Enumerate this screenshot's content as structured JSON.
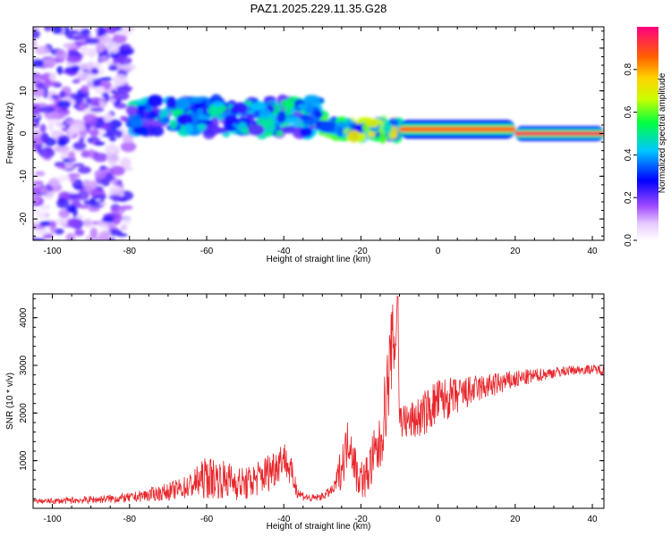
{
  "title": "PAZ1.2025.229.11.35.G28",
  "chart_data": [
    {
      "type": "heatmap",
      "xlabel": "Height of straight line (km)",
      "ylabel": "Frequency (Hz)",
      "xlim": [
        -105,
        43
      ],
      "ylim": [
        -25,
        25
      ],
      "x_ticks": [
        -100,
        -80,
        -60,
        -40,
        -20,
        0,
        20,
        40
      ],
      "x_tick_labels": [
        "-100",
        "-80",
        "-60",
        "-40",
        "-20",
        "0",
        "20",
        "40"
      ],
      "y_ticks": [
        -20,
        -10,
        0,
        10,
        20
      ],
      "y_tick_labels": [
        "-20",
        "-10",
        "0",
        "10",
        "20"
      ],
      "colorbar": {
        "label": "Normalized spectral amplitude",
        "range": [
          0,
          1
        ],
        "ticks": [
          0,
          0.2,
          0.4,
          0.6,
          0.8
        ],
        "tick_labels": [
          "0.0",
          "0.2",
          "0.4",
          "0.6",
          "0.8"
        ],
        "colormap": "rainbow"
      },
      "features": [
        {
          "region": "noise",
          "x_range": [
            -105,
            -80
          ],
          "freq_range": [
            -25,
            25
          ],
          "amplitude": 0.15
        },
        {
          "region": "tracking",
          "x_range": [
            -80,
            -30
          ],
          "freq_center": 4,
          "freq_width": 4,
          "amplitude": 0.35
        },
        {
          "region": "tracking",
          "x_range": [
            -30,
            -10
          ],
          "freq_center": 1,
          "freq_width": 2,
          "amplitude": 0.5
        },
        {
          "region": "tone",
          "x_range": [
            -10,
            20
          ],
          "freq_center": 1,
          "freq_width": 1,
          "amplitude": 0.85
        },
        {
          "region": "tone",
          "x_range": [
            20,
            43
          ],
          "freq_center": 0,
          "freq_width": 0.8,
          "amplitude": 0.95
        }
      ],
      "grid": false
    },
    {
      "type": "line",
      "xlabel": "Height of straight line (km)",
      "ylabel": "SNR (10 * v/v)",
      "xlim": [
        -105,
        43
      ],
      "ylim": [
        0,
        4500
      ],
      "x_ticks": [
        -100,
        -80,
        -60,
        -40,
        -20,
        0,
        20,
        40
      ],
      "x_tick_labels": [
        "-100",
        "-80",
        "-60",
        "-40",
        "-20",
        "0",
        "20",
        "40"
      ],
      "y_ticks": [
        1000,
        2000,
        3000,
        4000
      ],
      "y_tick_labels": [
        "1000",
        "2000",
        "3000",
        "4000"
      ],
      "series": [
        {
          "color": "#e8262b",
          "x": [
            -105,
            -100,
            -90,
            -80,
            -70,
            -65,
            -60,
            -55,
            -50,
            -45,
            -42,
            -40,
            -38,
            -36,
            -33,
            -30,
            -27,
            -25,
            -23,
            -21,
            -19,
            -17,
            -15,
            -13,
            -12,
            -11,
            -10.5,
            -10,
            -8,
            -5,
            -2,
            0,
            5,
            10,
            15,
            20,
            25,
            30,
            35,
            40,
            43
          ],
          "y": [
            150,
            150,
            180,
            220,
            350,
            450,
            650,
            600,
            500,
            700,
            900,
            1100,
            700,
            300,
            200,
            250,
            400,
            900,
            1500,
            700,
            600,
            1000,
            1300,
            2600,
            3400,
            3500,
            4450,
            1900,
            1800,
            1900,
            2100,
            2250,
            2350,
            2500,
            2600,
            2700,
            2780,
            2850,
            2900,
            2920,
            2900
          ],
          "noise": [
            40,
            60,
            80,
            100,
            180,
            250,
            450,
            400,
            350,
            400,
            450,
            350,
            350,
            120,
            80,
            80,
            120,
            500,
            500,
            450,
            400,
            600,
            600,
            900,
            900,
            800,
            0,
            400,
            400,
            450,
            500,
            500,
            400,
            300,
            250,
            200,
            150,
            120,
            100,
            100,
            100
          ]
        }
      ],
      "grid": false
    }
  ]
}
